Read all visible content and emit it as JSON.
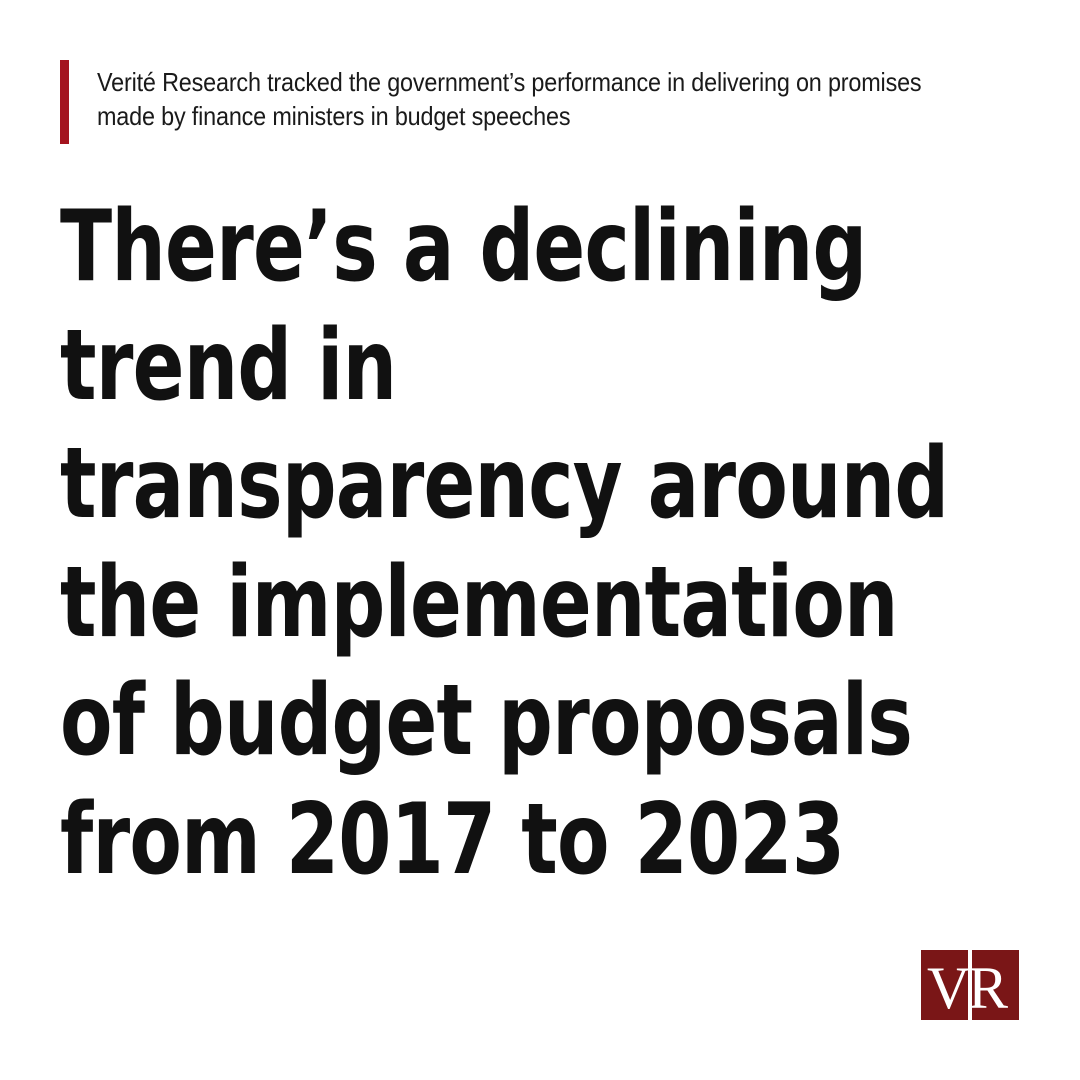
{
  "intro": {
    "text": "Verité Research tracked the government’s performance in delivering on promises made by finance ministers in budget speeches"
  },
  "headline": {
    "lines": [
      "There’s a declining",
      "trend in",
      "transparency around",
      "the implementation",
      "of budget proposals",
      "from 2017 to 2023"
    ]
  },
  "logo": {
    "letters": "VR",
    "letter_left": "V",
    "letter_right": "R"
  },
  "colors": {
    "accent": "#a4141f",
    "logo": "#7a1617",
    "text": "#111111",
    "background": "#ffffff"
  }
}
